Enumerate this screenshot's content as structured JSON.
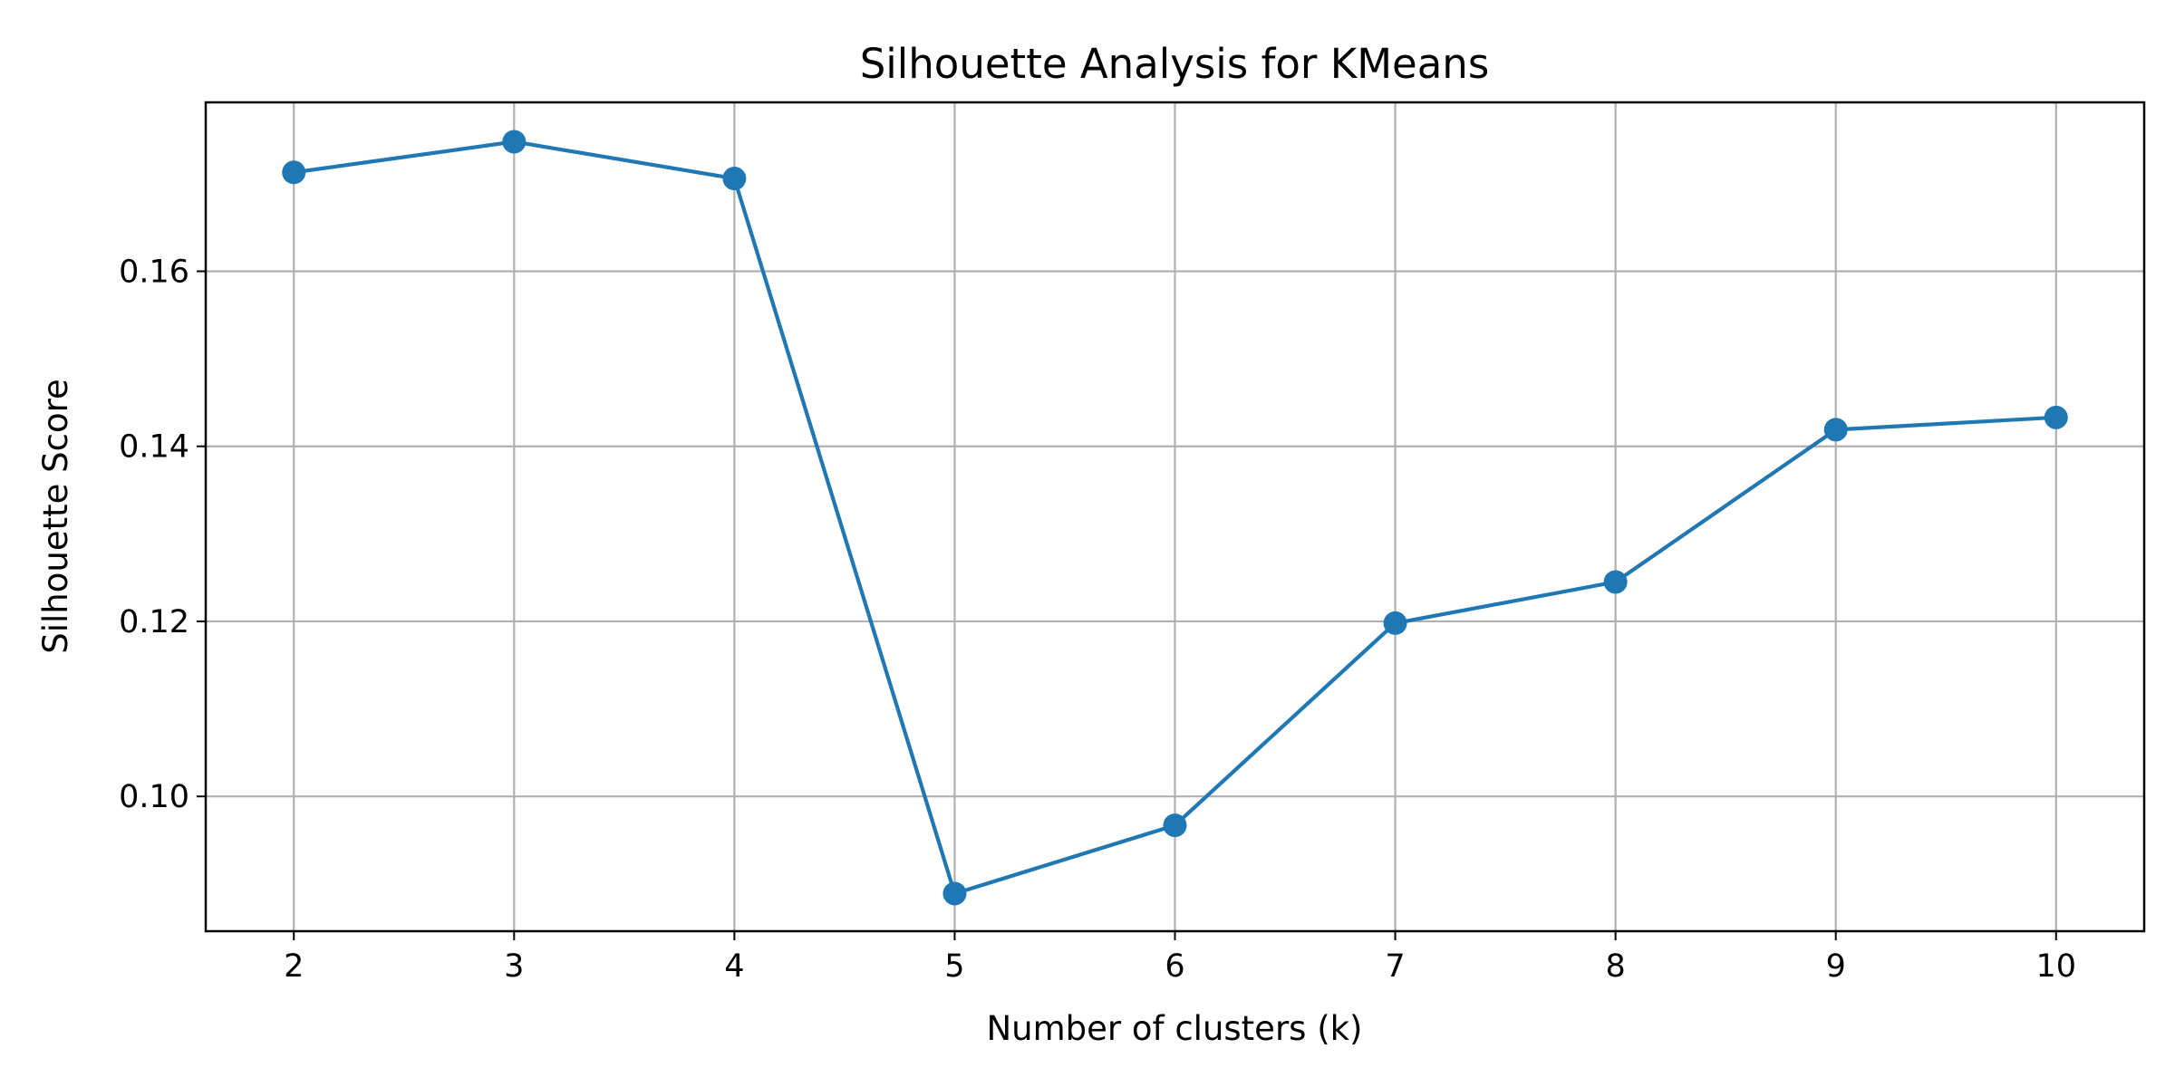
{
  "chart_data": {
    "type": "line",
    "title": "Silhouette Analysis for KMeans",
    "xlabel": "Number of clusters (k)",
    "ylabel": "Silhouette Score",
    "x": [
      2,
      3,
      4,
      5,
      6,
      7,
      8,
      9,
      10
    ],
    "xticks": [
      "2",
      "3",
      "4",
      "5",
      "6",
      "7",
      "8",
      "9",
      "10"
    ],
    "yticks": [
      "0.10",
      "0.12",
      "0.14",
      "0.16"
    ],
    "xlim": [
      1.6,
      10.4
    ],
    "ylim": [
      0.0846,
      0.1793
    ],
    "grid": true,
    "marker": "circle",
    "series": [
      {
        "values": [
          0.1713,
          0.1748,
          0.1706,
          0.0889,
          0.0967,
          0.1198,
          0.1245,
          0.1419,
          0.1433
        ],
        "color": "#1f77b4"
      }
    ]
  }
}
